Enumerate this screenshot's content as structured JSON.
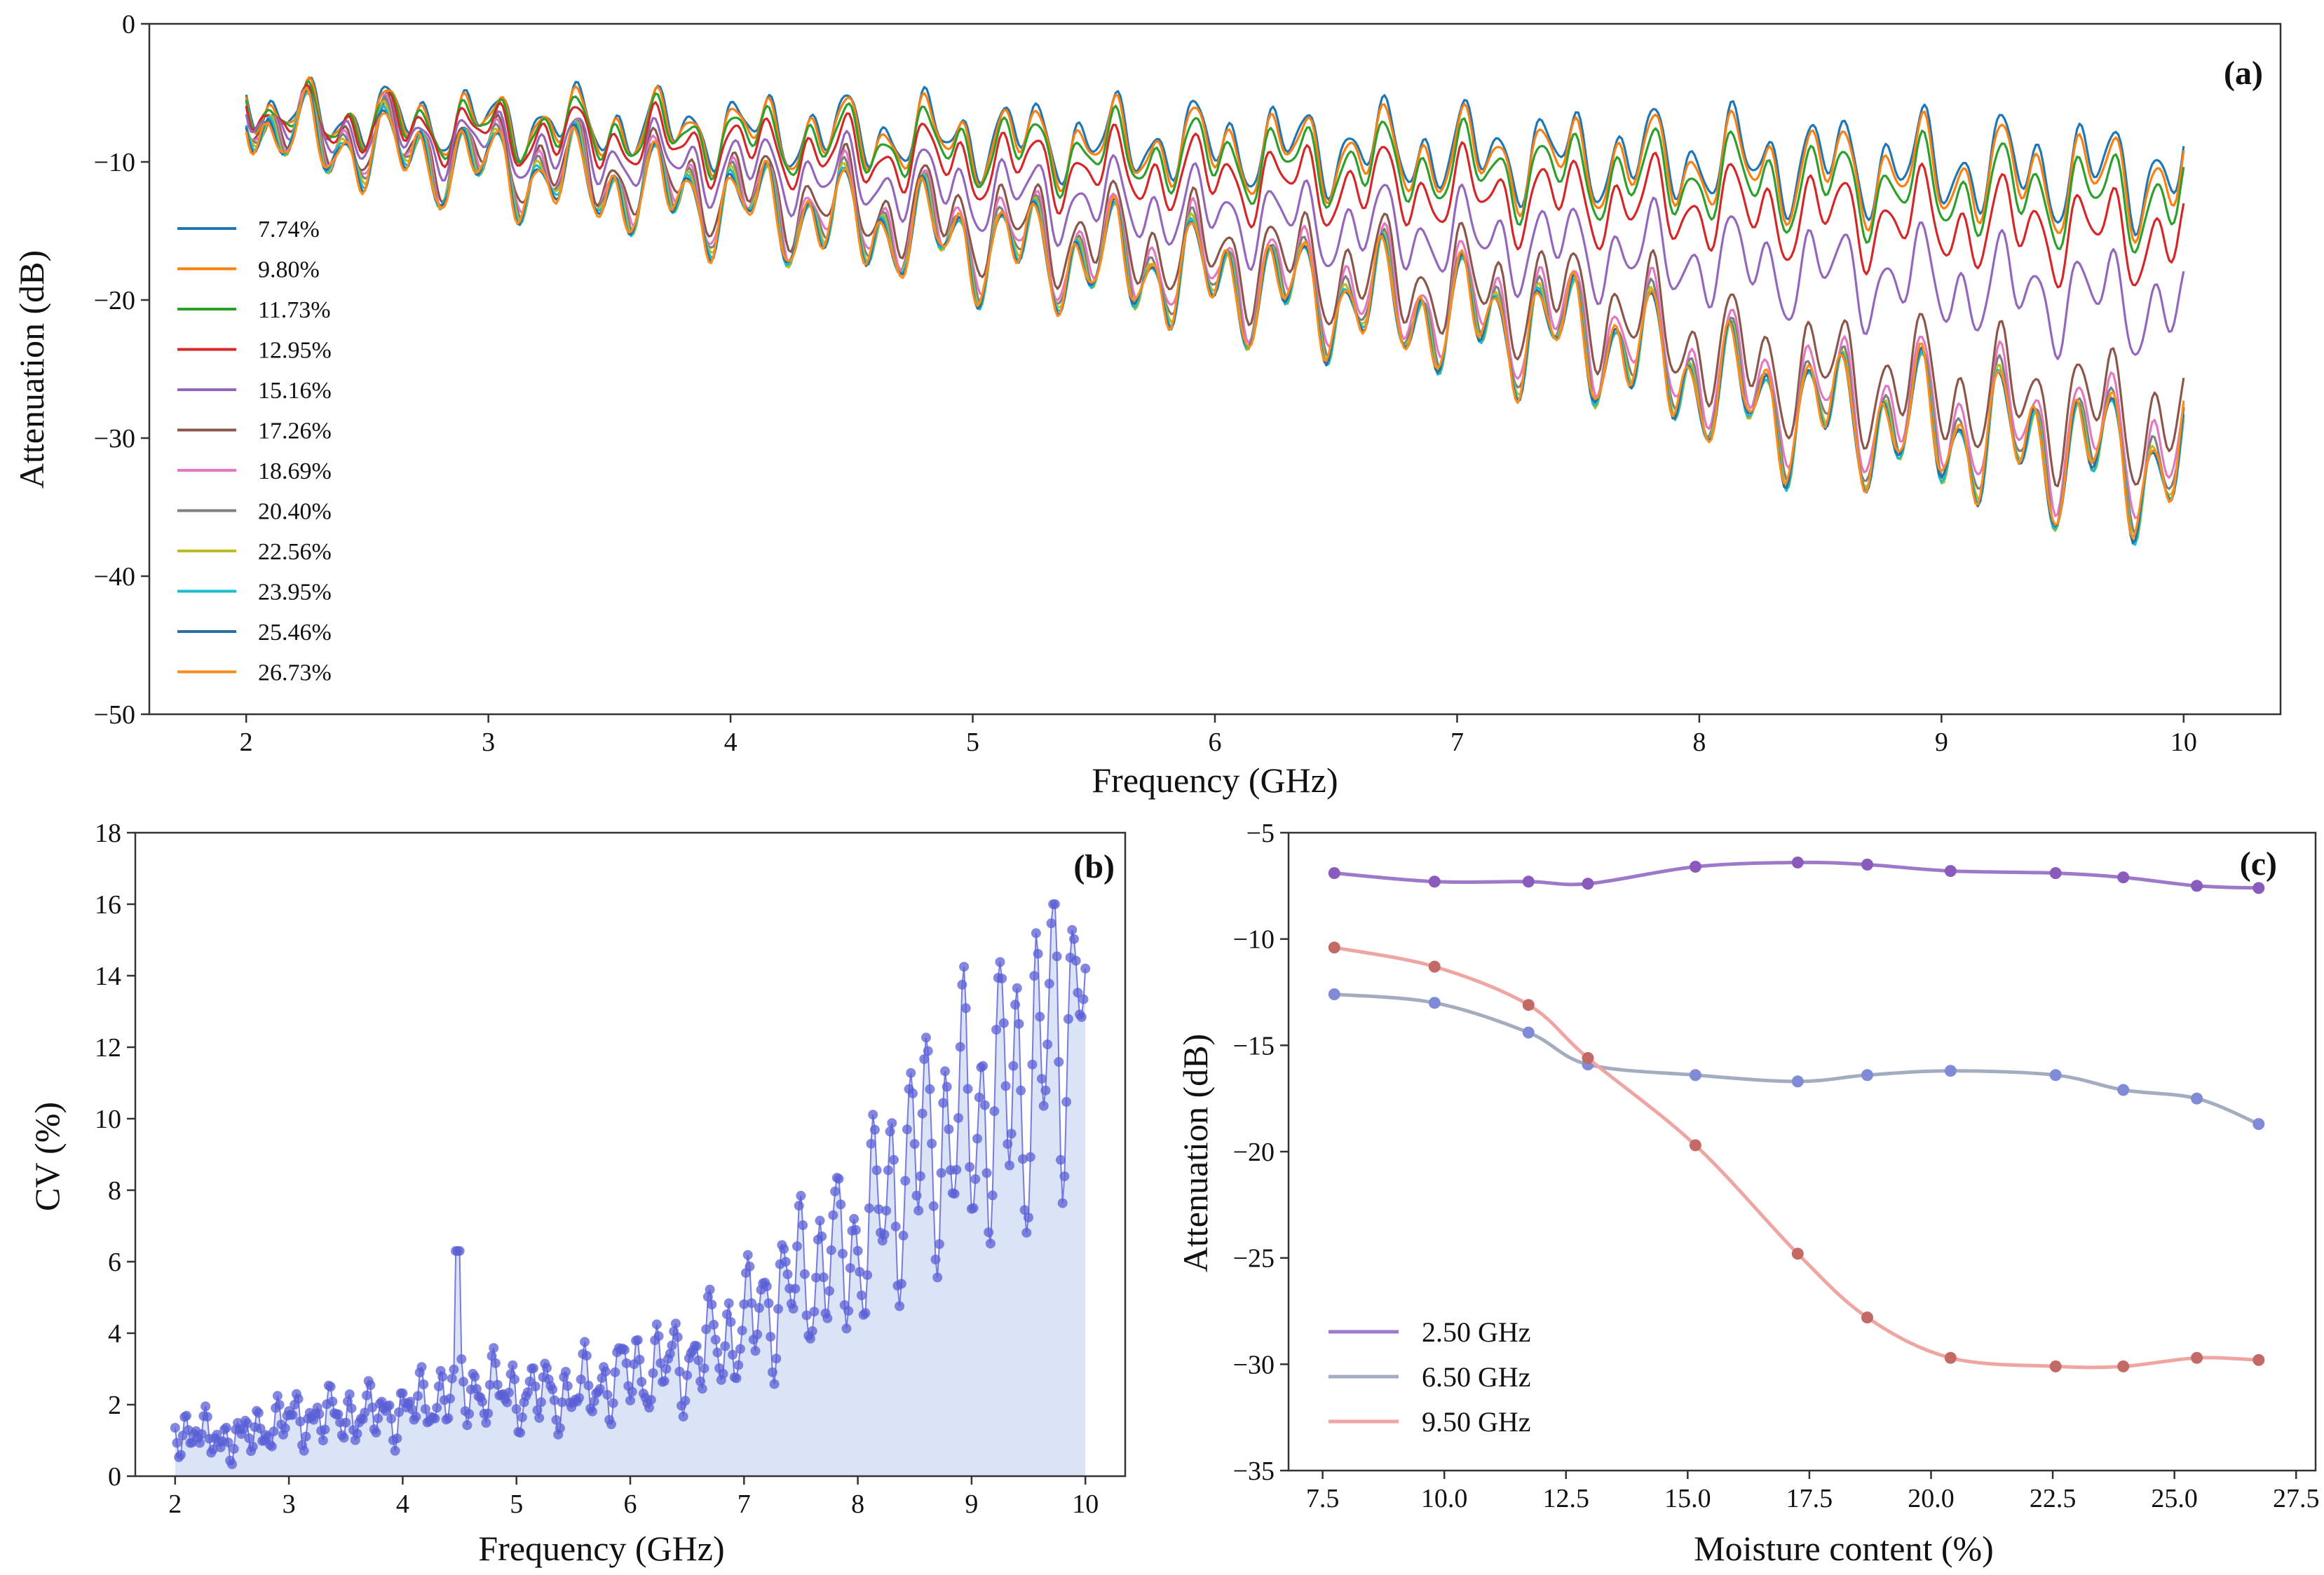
{
  "chart_data": [
    {
      "panel": "(a)",
      "type": "line",
      "xlabel": "Frequency (GHz)",
      "ylabel": "Attenuation (dB)",
      "xlim": [
        1.6,
        10.4
      ],
      "ylim": [
        -50,
        0
      ],
      "xticks": [
        2,
        3,
        4,
        5,
        6,
        7,
        8,
        9,
        10
      ],
      "yticks": [
        0,
        -10,
        -20,
        -30,
        -40,
        -50
      ],
      "ytick_labels": [
        "0",
        "−10",
        "−20",
        "−30",
        "−40",
        "−50"
      ],
      "legend_position": "left",
      "series": [
        {
          "name": "7.74%",
          "color": "#1f77b4",
          "start": -6.5,
          "end": -10.8,
          "bend": 0,
          "amp": 1.4
        },
        {
          "name": "9.80%",
          "color": "#ff7f0e",
          "start": -6.6,
          "end": -11.5,
          "bend": 0,
          "amp": 1.4
        },
        {
          "name": "11.73%",
          "color": "#2ca02c",
          "start": -6.7,
          "end": -12.8,
          "bend": 0,
          "amp": 1.3
        },
        {
          "name": "12.95%",
          "color": "#d62728",
          "start": -6.8,
          "end": -15.5,
          "bend": 0,
          "amp": 1.3
        },
        {
          "name": "15.16%",
          "color": "#9467bd",
          "start": -7.0,
          "end": -20.5,
          "bend": 0,
          "amp": 1.4
        },
        {
          "name": "17.26%",
          "color": "#8c564b",
          "start": -7.2,
          "end": -26.0,
          "bend": 7,
          "amp": 1.8
        },
        {
          "name": "18.69%",
          "color": "#e377c2",
          "start": -7.3,
          "end": -28.0,
          "bend": 7,
          "amp": 1.9
        },
        {
          "name": "20.40%",
          "color": "#7f7f7f",
          "start": -7.4,
          "end": -29.0,
          "bend": 7,
          "amp": 1.9
        },
        {
          "name": "22.56%",
          "color": "#bcbd22",
          "start": -7.5,
          "end": -29.5,
          "bend": 7,
          "amp": 1.9
        },
        {
          "name": "23.95%",
          "color": "#17becf",
          "start": -7.6,
          "end": -29.6,
          "bend": 7,
          "amp": 1.9
        },
        {
          "name": "25.46%",
          "color": "#2a6f9e",
          "start": -7.7,
          "end": -29.5,
          "bend": 7,
          "amp": 1.9
        },
        {
          "name": "26.73%",
          "color": "#ff8c1a",
          "start": -7.8,
          "end": -29.3,
          "bend": 7,
          "amp": 1.9
        }
      ]
    },
    {
      "panel": "(b)",
      "type": "area",
      "xlabel": "Frequency (GHz)",
      "ylabel": "CV  (%)",
      "xlim": [
        1.65,
        10.35
      ],
      "ylim": [
        0,
        18
      ],
      "xticks": [
        2,
        3,
        4,
        5,
        6,
        7,
        8,
        9,
        10
      ],
      "yticks": [
        0,
        2,
        4,
        6,
        8,
        10,
        12,
        14,
        16,
        18
      ],
      "line_color": "#5a5fd6",
      "marker_color": "#5a5fd6",
      "fill_color": "#dbe3f7",
      "anchors_x": [
        2.0,
        2.5,
        3.0,
        3.5,
        4.0,
        4.5,
        5.0,
        5.5,
        6.0,
        6.5,
        7.0,
        7.5,
        8.0,
        8.5,
        9.0,
        9.5,
        10.0
      ],
      "anchors_cv": [
        1.3,
        1.0,
        1.6,
        1.7,
        1.8,
        2.5,
        2.3,
        2.3,
        2.9,
        3.2,
        4.2,
        5.6,
        6.4,
        9.0,
        10.0,
        11.2,
        14.0
      ]
    },
    {
      "panel": "(c)",
      "type": "line",
      "xlabel": "Moisture content (%)",
      "ylabel": "Attenuation (dB)",
      "xlim": [
        6.8,
        27.9
      ],
      "ylim": [
        -35,
        -5
      ],
      "xticks": [
        7.5,
        10.0,
        12.5,
        15.0,
        17.5,
        20.0,
        22.5,
        25.0,
        27.5
      ],
      "xtick_labels": [
        "7.5",
        "10.0",
        "12.5",
        "15.0",
        "17.5",
        "20.0",
        "22.5",
        "25.0",
        "27.5"
      ],
      "yticks": [
        -5,
        -10,
        -15,
        -20,
        -25,
        -30,
        -35
      ],
      "ytick_labels": [
        "−5",
        "−10",
        "−15",
        "−20",
        "−25",
        "−30",
        "−35"
      ],
      "legend_position": "lower-left",
      "x": [
        7.74,
        9.8,
        11.73,
        12.95,
        15.16,
        17.26,
        18.69,
        20.4,
        22.56,
        23.95,
        25.46,
        26.73
      ],
      "series": [
        {
          "name": "2.50 GHz",
          "color": "#9f79c9",
          "values": [
            -6.9,
            -7.3,
            -7.3,
            -7.4,
            -6.6,
            -6.4,
            -6.5,
            -6.8,
            -6.9,
            -7.1,
            -7.5,
            -7.6
          ]
        },
        {
          "name": "6.50 GHz",
          "color": "#a3adbf",
          "values": [
            -12.6,
            -13.0,
            -14.4,
            -15.9,
            -16.4,
            -16.7,
            -16.4,
            -16.2,
            -16.4,
            -17.1,
            -17.5,
            -18.7
          ]
        },
        {
          "name": "9.50 GHz",
          "color": "#efa6a2",
          "values": [
            -10.4,
            -11.3,
            -13.1,
            -15.6,
            -19.7,
            -24.8,
            -27.8,
            -29.7,
            -30.1,
            -30.1,
            -29.7,
            -29.8
          ]
        }
      ]
    }
  ]
}
